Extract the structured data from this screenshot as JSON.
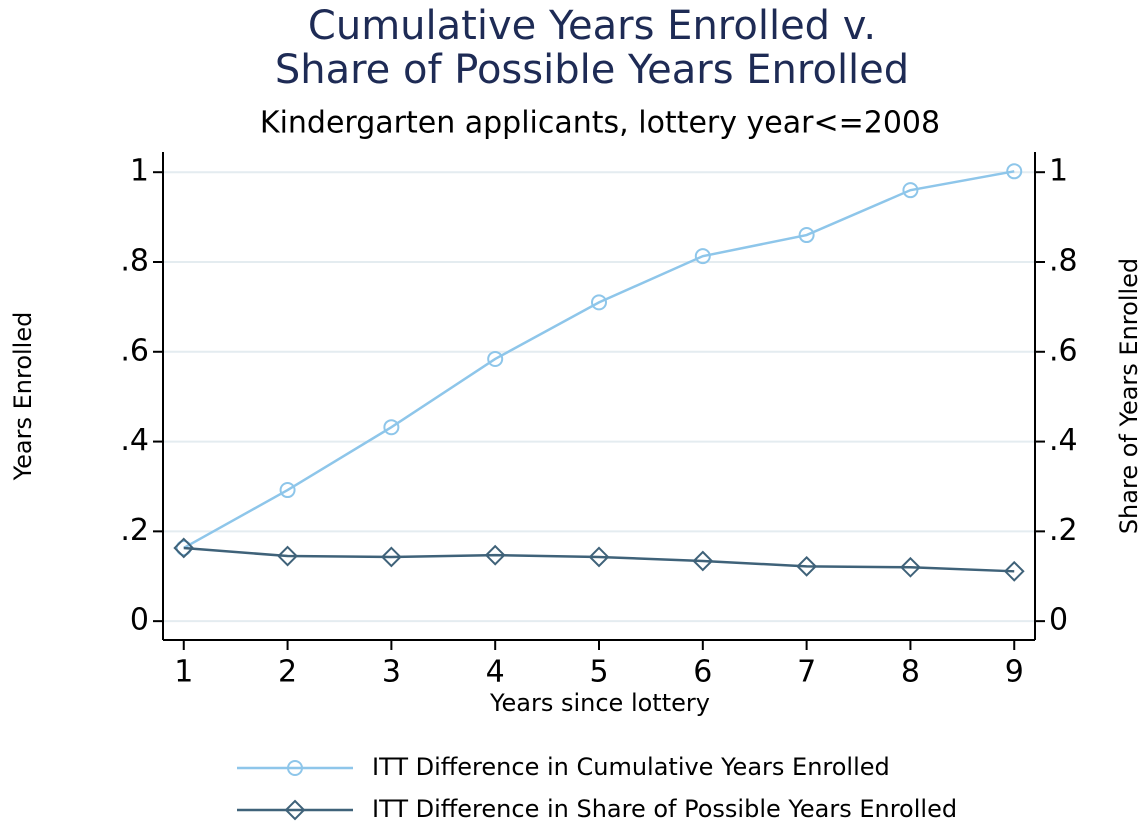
{
  "chart_data": {
    "type": "line",
    "title": [
      "Cumulative Years Enrolled v.",
      "Share of Possible Years Enrolled"
    ],
    "subtitle": "Kindergarten applicants, lottery year<=2008",
    "x_label": "Years since lottery",
    "y_label": "Years Enrolled",
    "y2_label": "Share of Years Enrolled",
    "x": [
      1,
      2,
      3,
      4,
      5,
      6,
      7,
      8,
      9
    ],
    "xlim": [
      0.8,
      9.2
    ],
    "xticks": [
      1,
      2,
      3,
      4,
      5,
      6,
      7,
      8,
      9
    ],
    "ylim": [
      -0.042,
      1.045
    ],
    "yticks": [
      0,
      {
        "value": 0.2,
        "label": ".2"
      },
      {
        "value": 0.4,
        "label": ".4"
      },
      {
        "value": 0.6,
        "label": ".6"
      },
      {
        "value": 0.8,
        "label": ".8"
      },
      1
    ],
    "y2lim": [
      -0.042,
      1.045
    ],
    "y2ticks": [
      0,
      {
        "value": 0.2,
        "label": ".2"
      },
      {
        "value": 0.4,
        "label": ".4"
      },
      {
        "value": 0.6,
        "label": ".6"
      },
      {
        "value": 0.8,
        "label": ".8"
      },
      1
    ],
    "grid": true,
    "legend": "bottom",
    "series": [
      {
        "name": "ITT Difference in Cumulative Years Enrolled",
        "color": "#8ec6ea",
        "marker": "circle",
        "values": [
          0.163,
          0.292,
          0.432,
          0.584,
          0.71,
          0.813,
          0.86,
          0.96,
          1.002
        ]
      },
      {
        "name": "ITT Difference in Share of Possible Years Enrolled",
        "color": "#3f6279",
        "marker": "diamond",
        "axis": "y2",
        "values": [
          0.163,
          0.145,
          0.143,
          0.147,
          0.143,
          0.134,
          0.122,
          0.12,
          0.111
        ]
      }
    ]
  }
}
